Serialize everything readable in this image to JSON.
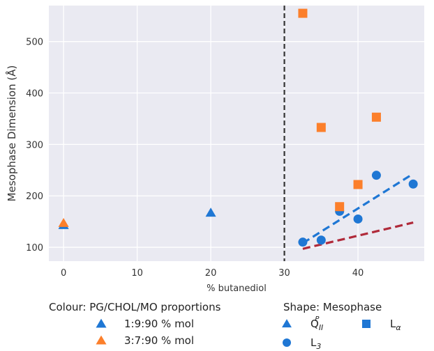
{
  "chart_data": {
    "type": "scatter",
    "xlabel": "% butanediol",
    "ylabel": "Mesophase Dimension (Å)",
    "xlim": [
      -2,
      49
    ],
    "ylim": [
      73,
      570
    ],
    "xticks": [
      0,
      10,
      20,
      30,
      40
    ],
    "yticks": [
      100,
      200,
      300,
      400,
      500
    ],
    "grid": true,
    "background": "#eaeaf2",
    "vline": {
      "x": 30,
      "style": "dashed",
      "color": "#333333"
    },
    "colors": {
      "blue": "#1f77d4",
      "orange": "#fc7f2b",
      "red": "#b02a3a",
      "blue_fit": "#1f77d4"
    },
    "points": [
      {
        "x": 0,
        "y": 143,
        "shape": "triangle",
        "color": "blue"
      },
      {
        "x": 0,
        "y": 147,
        "shape": "triangle",
        "color": "orange"
      },
      {
        "x": 20,
        "y": 167,
        "shape": "triangle",
        "color": "blue"
      },
      {
        "x": 32.5,
        "y": 110,
        "shape": "circle",
        "color": "blue"
      },
      {
        "x": 35,
        "y": 114,
        "shape": "circle",
        "color": "blue"
      },
      {
        "x": 37.5,
        "y": 170,
        "shape": "circle",
        "color": "blue"
      },
      {
        "x": 40,
        "y": 155,
        "shape": "circle",
        "color": "blue"
      },
      {
        "x": 42.5,
        "y": 240,
        "shape": "circle",
        "color": "blue"
      },
      {
        "x": 47.5,
        "y": 223,
        "shape": "circle",
        "color": "blue"
      },
      {
        "x": 32.5,
        "y": 555,
        "shape": "square",
        "color": "orange"
      },
      {
        "x": 35,
        "y": 333,
        "shape": "square",
        "color": "orange"
      },
      {
        "x": 37.5,
        "y": 179,
        "shape": "square",
        "color": "orange"
      },
      {
        "x": 40,
        "y": 222,
        "shape": "square",
        "color": "orange"
      },
      {
        "x": 42.5,
        "y": 353,
        "shape": "square",
        "color": "orange"
      }
    ],
    "fit_lines": [
      {
        "x": [
          32.5,
          47.5
        ],
        "y": [
          108,
          243
        ],
        "color": "blue_fit",
        "style": "dashed"
      },
      {
        "x": [
          32.5,
          47.5
        ],
        "y": [
          97,
          148
        ],
        "color": "red",
        "style": "dashed"
      }
    ],
    "legend": {
      "colour_title": "Colour: PG/CHOL/MO proportions",
      "colour_items": [
        {
          "label": "1:9:90 % mol",
          "color": "blue"
        },
        {
          "label": "3:7:90 % mol",
          "color": "orange"
        }
      ],
      "shape_title": "Shape: Mesophase",
      "shape_items": [
        {
          "label_main": "Q",
          "label_sub": "II",
          "label_sup": "P",
          "shape": "triangle"
        },
        {
          "label_main": "L",
          "label_sub": "α",
          "shape": "square"
        },
        {
          "label_main": "L",
          "label_sub": "3",
          "shape": "circle"
        }
      ]
    }
  }
}
